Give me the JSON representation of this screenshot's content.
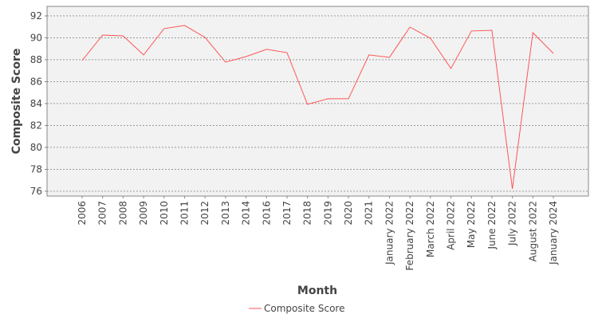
{
  "chart_data": {
    "type": "line",
    "x_label": "Month",
    "y_label": "Composite Score",
    "categories": [
      "2006",
      "2007",
      "2008",
      "2009",
      "2010",
      "2011",
      "2012",
      "2013",
      "2014",
      "2016",
      "2017",
      "2018",
      "2019",
      "2020",
      "2021",
      "January 2022",
      "February 2022",
      "March 2022",
      "April 2022",
      "May 2022",
      "June 2022",
      "July 2022",
      "August 2022",
      "January 2024"
    ],
    "series": [
      {
        "name": "Composite Score",
        "color": "#ff5555",
        "values": [
          87.93,
          90.25,
          90.18,
          88.44,
          90.84,
          91.13,
          90.04,
          87.78,
          88.29,
          88.95,
          88.65,
          83.93,
          84.44,
          84.44,
          88.44,
          88.22,
          90.98,
          89.96,
          87.2,
          90.62,
          90.69,
          76.22,
          90.47,
          88.58
        ]
      }
    ],
    "ylim": [
      75.56,
      92.87
    ],
    "yticks": [
      76,
      78,
      80,
      82,
      84,
      86,
      88,
      90,
      92
    ],
    "grid": true,
    "legend": "bottom"
  }
}
